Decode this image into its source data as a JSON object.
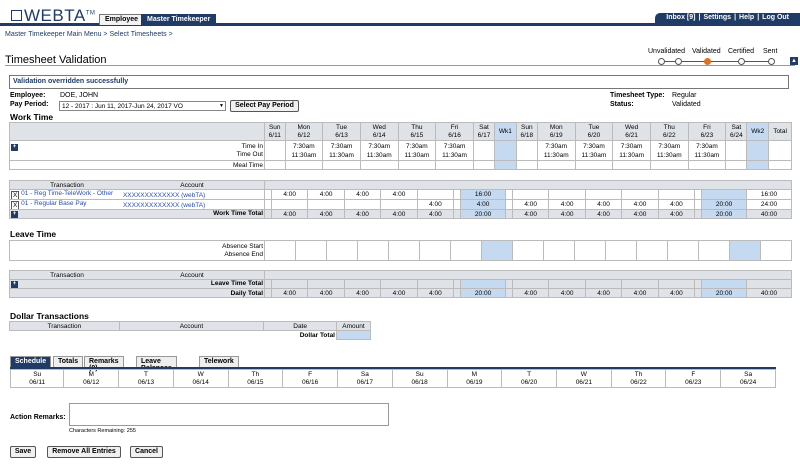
{
  "header": {
    "logo": "WEBTA",
    "logo_tm": "TM",
    "nav_tabs": [
      "Employee",
      "Master Timekeeper"
    ],
    "right_links": [
      "Inbox [9]",
      "Settings",
      "Help",
      "Log Out"
    ]
  },
  "breadcrumb": "Master Timekeeper Main Menu > Select Timesheets >",
  "page_title": "Timesheet Validation",
  "progress": {
    "steps": [
      "Unvalidated",
      "Validated",
      "Certified",
      "Sent"
    ],
    "current": 1
  },
  "message": "Validation overridden successfully",
  "employee": {
    "label": "Employee:",
    "name": "DOE, JOHN",
    "pay_period_label": "Pay Period:",
    "pay_period": "12 - 2017 : Jun 11, 2017-Jun 24, 2017 VO",
    "select_button": "Select Pay Period",
    "ts_type_label": "Timesheet Type:",
    "ts_type": "Regular",
    "status_label": "Status:",
    "status": "Validated"
  },
  "work_time": {
    "title": "Work Time",
    "days": [
      [
        "Sun",
        "6/11"
      ],
      [
        "Mon",
        "6/12"
      ],
      [
        "Tue",
        "6/13"
      ],
      [
        "Wed",
        "6/14"
      ],
      [
        "Thu",
        "6/15"
      ],
      [
        "Fri",
        "6/16"
      ],
      [
        "Sat",
        "6/17"
      ],
      [
        "Wk1",
        ""
      ],
      [
        "Sun",
        "6/18"
      ],
      [
        "Mon",
        "6/19"
      ],
      [
        "Tue",
        "6/20"
      ],
      [
        "Wed",
        "6/21"
      ],
      [
        "Thu",
        "6/22"
      ],
      [
        "Fri",
        "6/23"
      ],
      [
        "Sat",
        "6/24"
      ],
      [
        "Wk2",
        ""
      ],
      [
        "Total",
        ""
      ]
    ],
    "time_in_label": "Time In",
    "time_out_label": "Time Out",
    "meal_label": "Meal Time",
    "time_in": [
      "",
      "7:30am",
      "7:30am",
      "7:30am",
      "7:30am",
      "7:30am",
      "",
      "",
      "",
      "7:30am",
      "7:30am",
      "7:30am",
      "7:30am",
      "7:30am",
      "",
      "",
      ""
    ],
    "time_out": [
      "",
      "11:30am",
      "11:30am",
      "11:30am",
      "11:30am",
      "11:30am",
      "",
      "",
      "",
      "11:30am",
      "11:30am",
      "11:30am",
      "11:30am",
      "11:30am",
      "",
      "",
      ""
    ],
    "txn_header": "Transaction",
    "acct_header": "Account",
    "rows": [
      {
        "x": "X",
        "txn": "01 - Reg Time-TeleWork - Other",
        "acct": "XXXXXXXXXXXXX (webTA)",
        "vals": [
          "",
          "4:00",
          "4:00",
          "4:00",
          "4:00",
          "",
          "",
          "16:00",
          "",
          "",
          "",
          "",
          "",
          "",
          "",
          "",
          "16:00"
        ]
      },
      {
        "x": "X",
        "txn": "01 - Regular Base Pay",
        "acct": "XXXXXXXXXXXXX (webTA)",
        "vals": [
          "",
          "",
          "",
          "",
          "",
          "4:00",
          "",
          "4:00",
          "",
          "4:00",
          "4:00",
          "4:00",
          "4:00",
          "4:00",
          "",
          "20:00",
          "24:00"
        ]
      }
    ],
    "total_label": "Work Time Total",
    "totals": [
      "",
      "4:00",
      "4:00",
      "4:00",
      "4:00",
      "4:00",
      "",
      "20:00",
      "",
      "4:00",
      "4:00",
      "4:00",
      "4:00",
      "4:00",
      "",
      "20:00",
      "40:00"
    ]
  },
  "leave_time": {
    "title": "Leave Time",
    "absence_start": "Absence Start",
    "absence_end": "Absence End",
    "txn_header": "Transaction",
    "acct_header": "Account",
    "total_label": "Leave Time Total",
    "daily_label": "Daily Total",
    "daily": [
      "",
      "4:00",
      "4:00",
      "4:00",
      "4:00",
      "4:00",
      "",
      "20:00",
      "",
      "4:00",
      "4:00",
      "4:00",
      "4:00",
      "4:00",
      "",
      "20:00",
      "40:00"
    ]
  },
  "dollar": {
    "title": "Dollar Transactions",
    "headers": [
      "Transaction",
      "Account",
      "Date",
      "Amount"
    ],
    "total_label": "Dollar Total"
  },
  "bottom_tabs": [
    "Schedule",
    "Totals",
    "Remarks (0)",
    "Leave Balances",
    "Telework"
  ],
  "schedule": [
    [
      "Su",
      "06/11"
    ],
    [
      "M",
      "06/12"
    ],
    [
      "T",
      "06/13"
    ],
    [
      "W",
      "06/14"
    ],
    [
      "Th",
      "06/15"
    ],
    [
      "F",
      "06/16"
    ],
    [
      "Sa",
      "06/17"
    ],
    [
      "Su",
      "06/18"
    ],
    [
      "M",
      "06/19"
    ],
    [
      "T",
      "06/20"
    ],
    [
      "W",
      "06/21"
    ],
    [
      "Th",
      "06/22"
    ],
    [
      "F",
      "06/23"
    ],
    [
      "Sa",
      "06/24"
    ]
  ],
  "remarks": {
    "label": "Action Remarks:",
    "chars": "Characters Remaining: 255"
  },
  "buttons": {
    "save": "Save",
    "remove": "Remove All Entries",
    "cancel": "Cancel"
  }
}
